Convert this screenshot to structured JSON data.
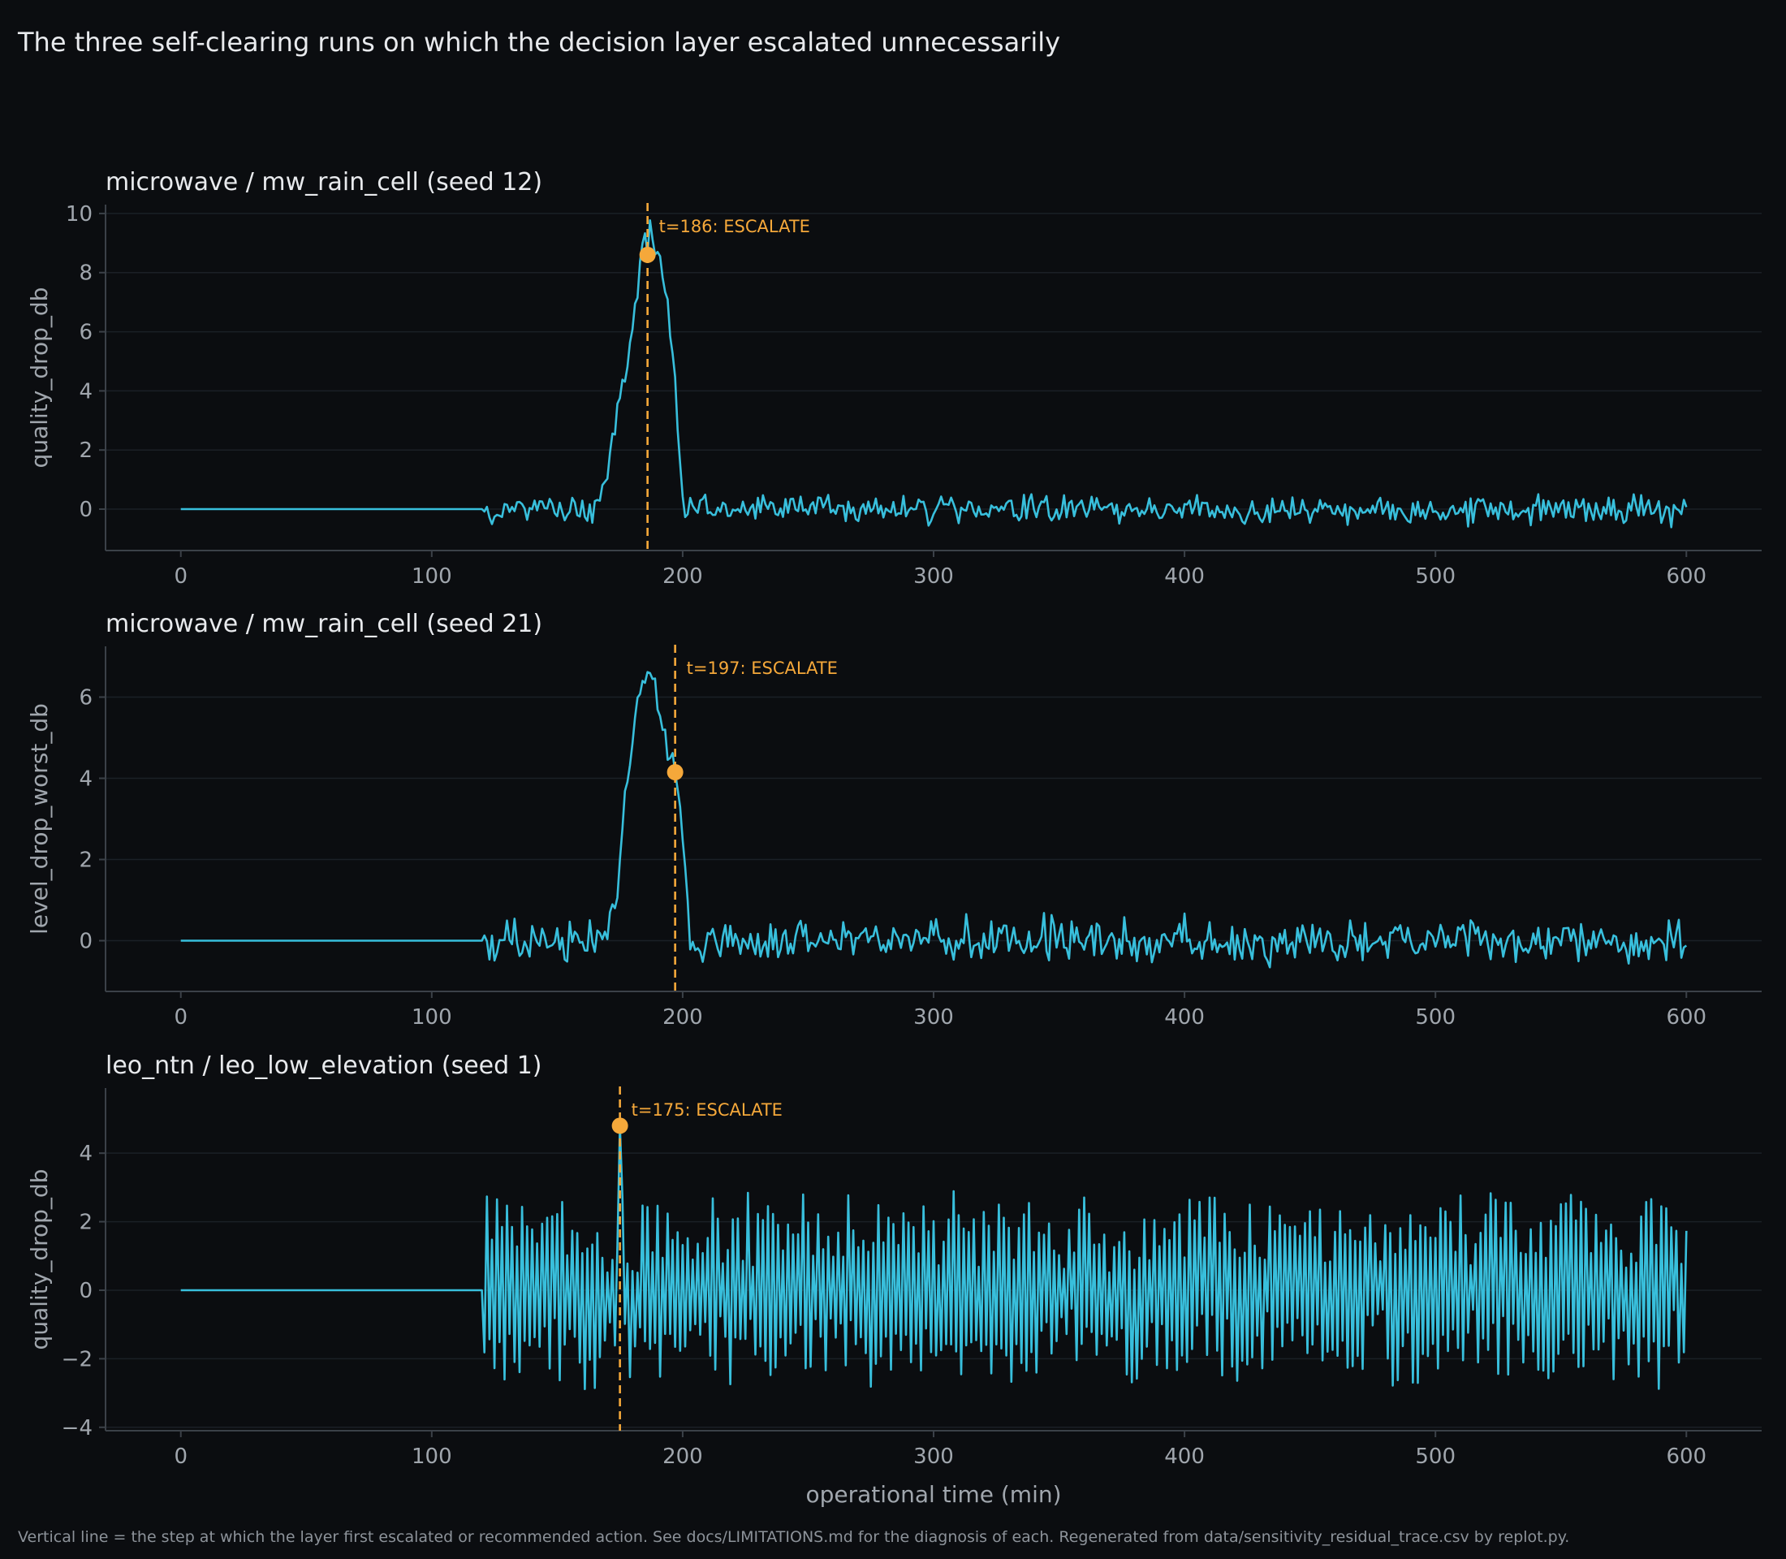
{
  "title": "The three self-clearing runs on which the decision layer escalated unnecessarily",
  "footnote": "Vertical line = the step at which the layer first escalated or recommended action. See docs/LIMITATIONS.md for the diagnosis of each. Regenerated from data/sensitivity_residual_trace.csv by replot.py.",
  "colors": {
    "background": "#0b0d10",
    "series": "#38bfdc",
    "marker": "#f5a83a",
    "grid": "#1b2026",
    "text": "#e8eaed",
    "muted": "#a0a6ad"
  },
  "chart_data": [
    {
      "type": "line",
      "title": "microwave / mw_rain_cell (seed 12)",
      "xlabel": "",
      "ylabel": "quality_drop_db",
      "xlim": [
        -30,
        630
      ],
      "ylim": [
        -1.4,
        10.3
      ],
      "xticks": [
        0,
        100,
        200,
        300,
        400,
        500,
        600
      ],
      "yticks": [
        0,
        2,
        4,
        6,
        8,
        10
      ],
      "ytick_labels": [
        "0",
        "2",
        "4",
        "6",
        "8",
        "10"
      ],
      "grid": true,
      "baseline": {
        "x_end": 120,
        "value": 0
      },
      "noise": {
        "x_start": 120,
        "x_end": 600,
        "amplitude": 0.28,
        "seed": 12
      },
      "bump": {
        "points": [
          [
            165,
            0
          ],
          [
            170,
            1.2
          ],
          [
            175,
            3.5
          ],
          [
            180,
            6.2
          ],
          [
            183,
            8.0
          ],
          [
            185,
            9.6
          ],
          [
            188,
            9.3
          ],
          [
            191,
            8.4
          ],
          [
            194,
            7.0
          ],
          [
            197,
            4.5
          ],
          [
            200,
            0.3
          ],
          [
            203,
            0
          ]
        ]
      },
      "escalation": {
        "t": 186,
        "value": 8.6,
        "label": "t=186: ESCALATE"
      }
    },
    {
      "type": "line",
      "title": "microwave / mw_rain_cell (seed 21)",
      "xlabel": "",
      "ylabel": "level_drop_worst_db",
      "xlim": [
        -30,
        630
      ],
      "ylim": [
        -1.25,
        7.25
      ],
      "xticks": [
        0,
        100,
        200,
        300,
        400,
        500,
        600
      ],
      "yticks": [
        0,
        2,
        4,
        6
      ],
      "ytick_labels": [
        "0",
        "2",
        "4",
        "6"
      ],
      "grid": true,
      "baseline": {
        "x_end": 120,
        "value": 0
      },
      "noise": {
        "x_start": 120,
        "x_end": 600,
        "amplitude": 0.32,
        "seed": 21
      },
      "bump": {
        "points": [
          [
            170,
            0
          ],
          [
            174,
            1.5
          ],
          [
            178,
            3.8
          ],
          [
            182,
            5.8
          ],
          [
            186,
            6.6
          ],
          [
            189,
            6.2
          ],
          [
            193,
            5.0
          ],
          [
            197,
            4.1
          ],
          [
            200,
            2.5
          ],
          [
            203,
            0.3
          ],
          [
            206,
            0
          ]
        ]
      },
      "escalation": {
        "t": 197,
        "value": 4.15,
        "label": "t=197: ESCALATE"
      }
    },
    {
      "type": "line",
      "title": "leo_ntn / leo_low_elevation (seed 1)",
      "xlabel": "operational time (min)",
      "ylabel": "quality_drop_db",
      "xlim": [
        -30,
        630
      ],
      "ylim": [
        -4.1,
        5.9
      ],
      "xticks": [
        0,
        100,
        200,
        300,
        400,
        500,
        600
      ],
      "yticks": [
        -4,
        -2,
        0,
        2,
        4
      ],
      "ytick_labels": [
        "−4",
        "−2",
        "0",
        "2",
        "4"
      ],
      "grid": true,
      "baseline": {
        "x_end": 120,
        "value": 0
      },
      "noise": {
        "x_start": 120,
        "x_end": 600,
        "amplitude": 2.1,
        "seed": 1,
        "oscillating": true
      },
      "escalation": {
        "t": 175,
        "value": 4.8,
        "label": "t=175: ESCALATE"
      }
    }
  ]
}
